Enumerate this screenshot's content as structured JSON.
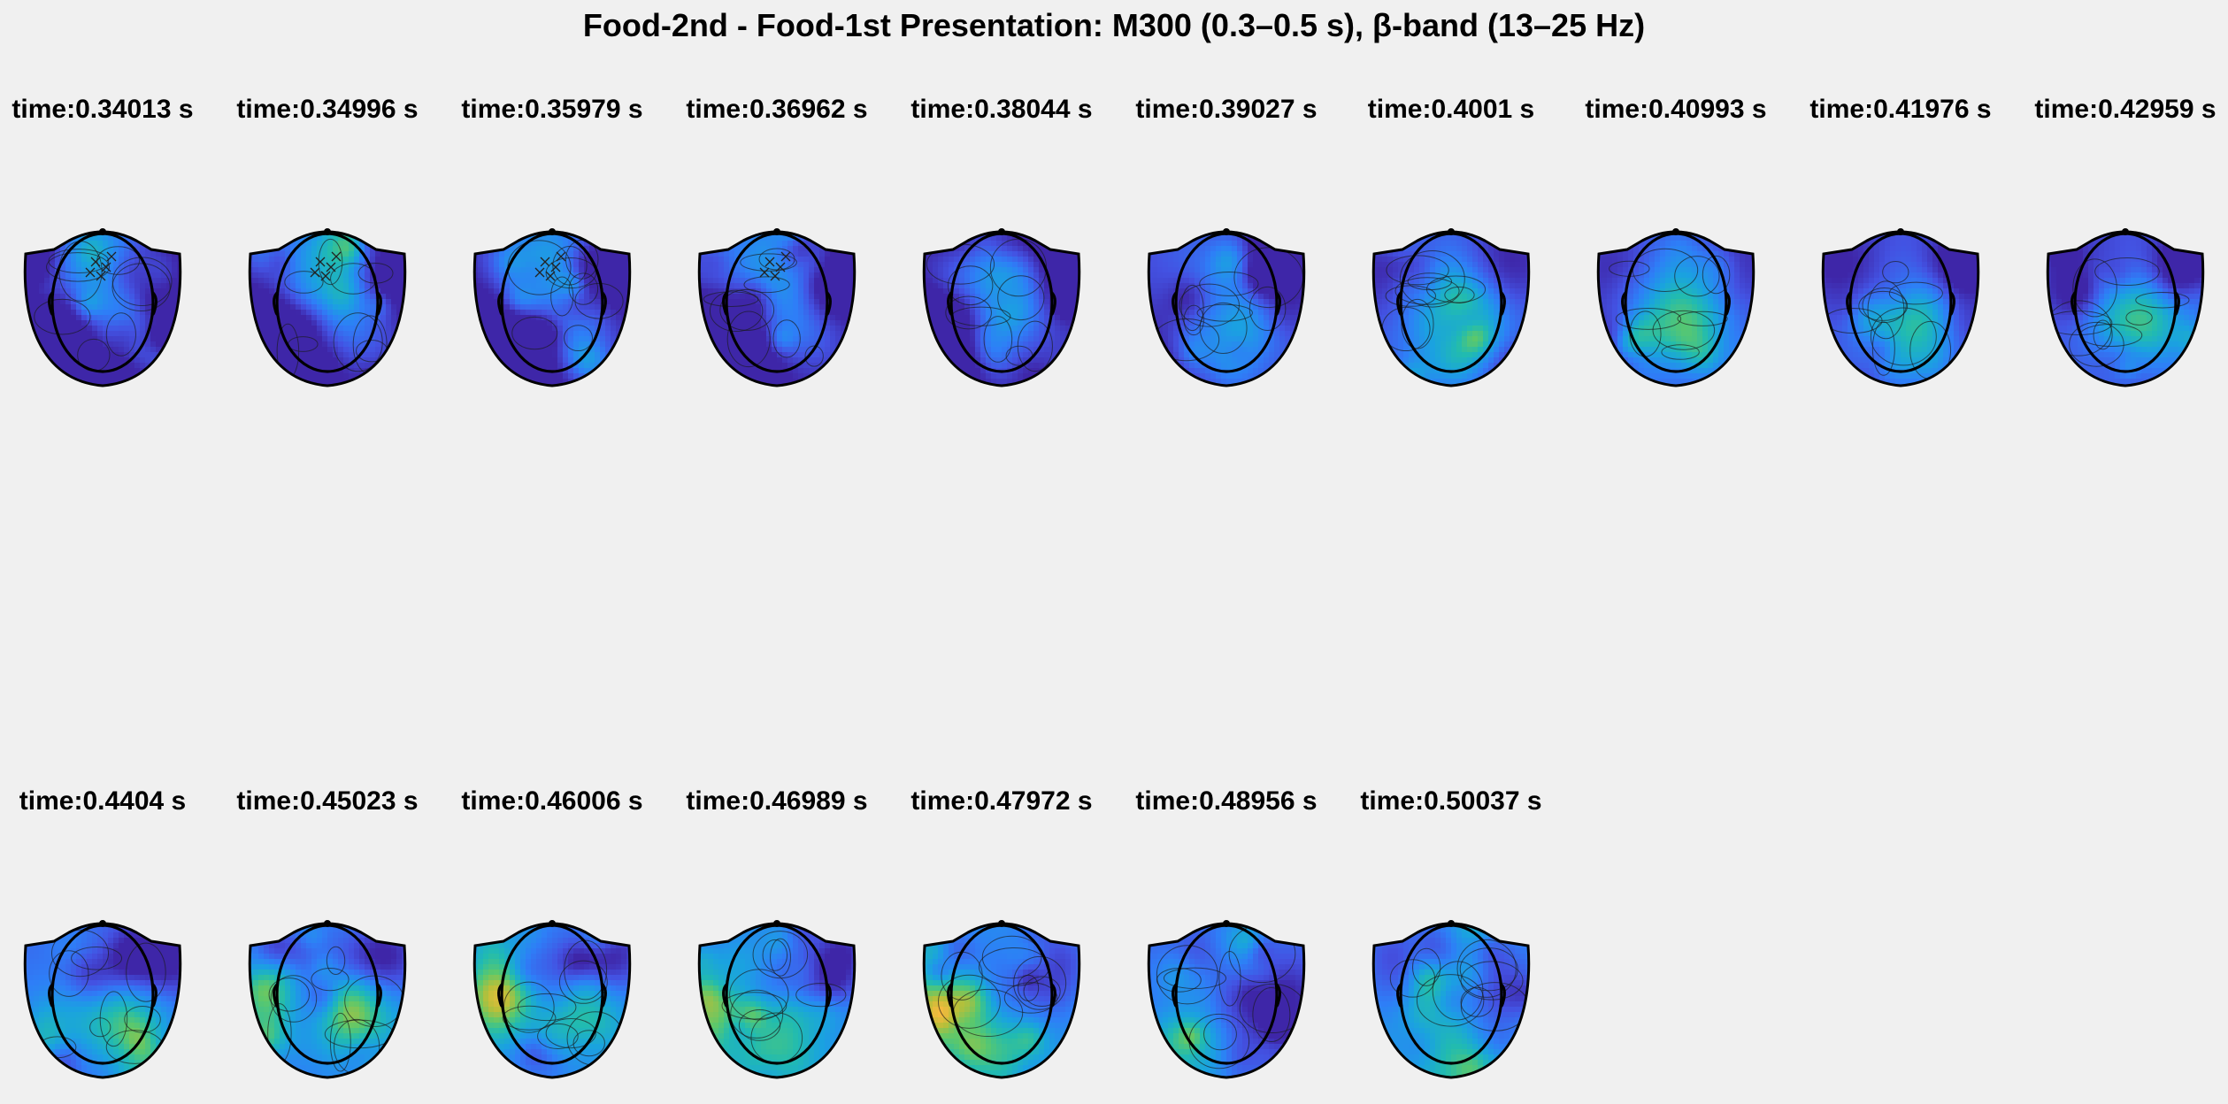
{
  "figure": {
    "title": "Food-2nd - Food-1st Presentation: M300 (0.3–0.5 s), β-band (13–25 Hz)"
  },
  "colormap": {
    "name": "parula",
    "stops": [
      "#3e26a8",
      "#4352e2",
      "#2e7ef7",
      "#1aa2e0",
      "#21bbb0",
      "#5cc86b",
      "#b8bf39",
      "#f5ba3d",
      "#f9e021"
    ]
  },
  "topomaps": {
    "rows": [
      {
        "panels": [
          {
            "label": "time:0.34013 s",
            "pattern": "front-yellow",
            "marked": true
          },
          {
            "label": "time:0.34996 s",
            "pattern": "front-yellow",
            "marked": true
          },
          {
            "label": "time:0.35979 s",
            "pattern": "front-yellow",
            "marked": true
          },
          {
            "label": "time:0.36962 s",
            "pattern": "front-yellow",
            "marked": true
          },
          {
            "label": "time:0.38044 s",
            "pattern": "front-mid",
            "marked": false
          },
          {
            "label": "time:0.39027 s",
            "pattern": "mid-green",
            "marked": false
          },
          {
            "label": "time:0.4001 s",
            "pattern": "center-yellow",
            "marked": false
          },
          {
            "label": "time:0.40993 s",
            "pattern": "center-yellow",
            "marked": false
          },
          {
            "label": "time:0.41976 s",
            "pattern": "right-center",
            "marked": false
          },
          {
            "label": "time:0.42959 s",
            "pattern": "right-center",
            "marked": false
          }
        ]
      },
      {
        "panels": [
          {
            "label": "time:0.4404 s",
            "pattern": "right-back",
            "marked": false
          },
          {
            "label": "time:0.45023 s",
            "pattern": "both-sides",
            "marked": false
          },
          {
            "label": "time:0.46006 s",
            "pattern": "both-sides",
            "marked": false
          },
          {
            "label": "time:0.46989 s",
            "pattern": "left-side",
            "marked": false
          },
          {
            "label": "time:0.47972 s",
            "pattern": "left-side",
            "marked": false
          },
          {
            "label": "time:0.48956 s",
            "pattern": "back-yellow",
            "marked": false
          },
          {
            "label": "time:0.50037 s",
            "pattern": "blue-back",
            "marked": false
          }
        ]
      }
    ]
  }
}
